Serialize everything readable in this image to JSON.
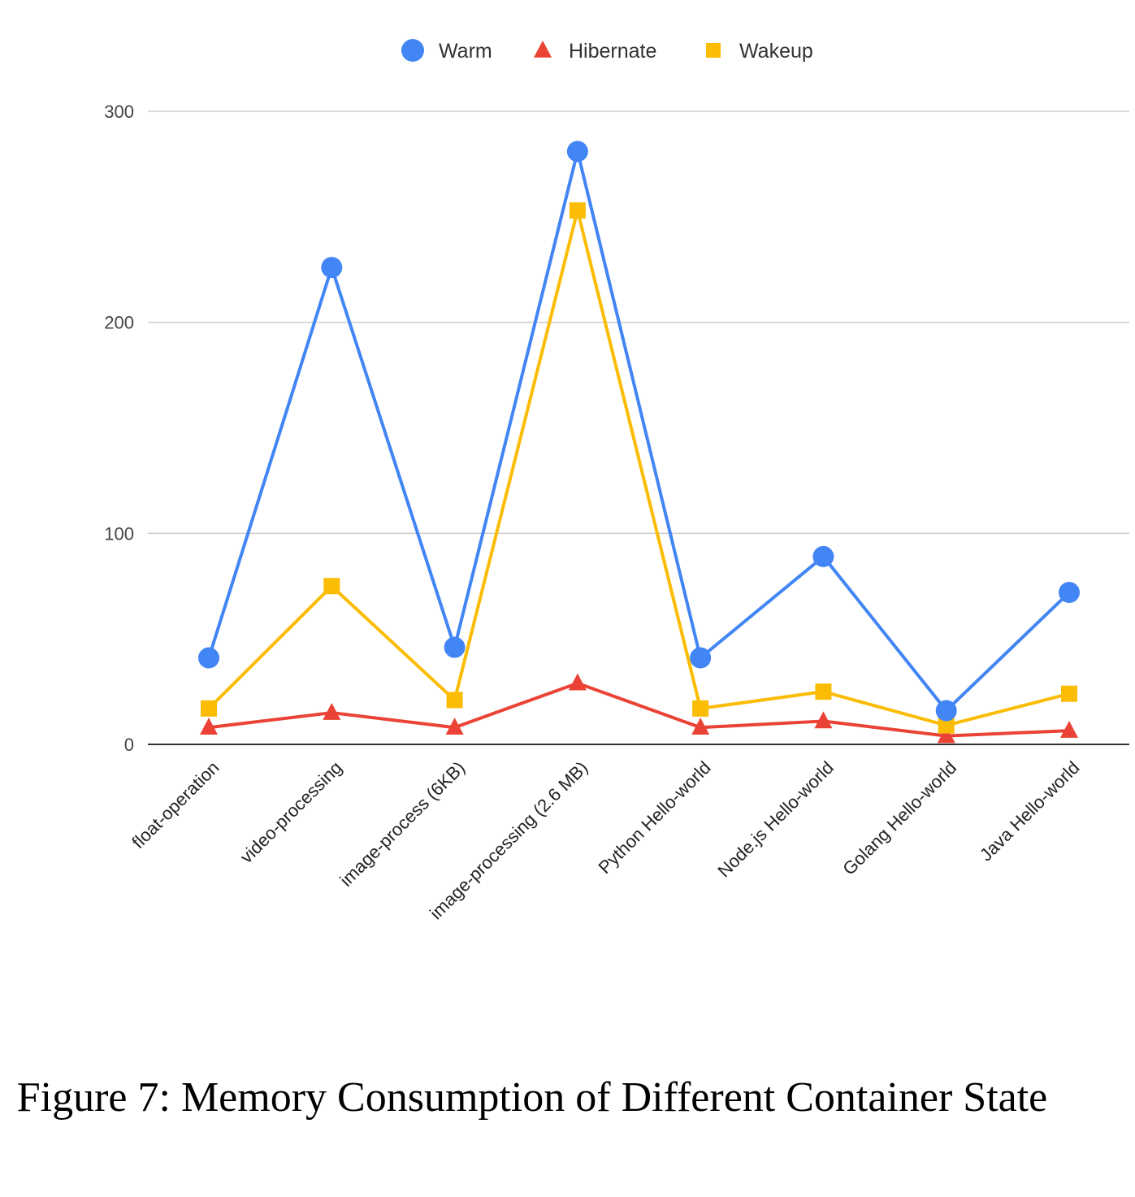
{
  "caption": "Figure 7: Memory Consumption of Different Container State",
  "chart_data": {
    "type": "line",
    "title": "",
    "xlabel": "",
    "ylabel": "",
    "ylim": [
      0,
      300
    ],
    "yticks": [
      0,
      100,
      200,
      300
    ],
    "grid": true,
    "legend_position": "top-center",
    "categories": [
      "float-operation",
      "video-processing",
      "image-process (6KB)",
      "image-processing (2.6 MB)",
      "Python Hello-world",
      "Node.js Hello-world",
      "Golang Hello-world",
      "Java Hello-world"
    ],
    "series": [
      {
        "name": "Warm",
        "marker": "circle",
        "color": "#4285F4",
        "values": [
          41,
          226,
          46,
          281,
          41,
          89,
          16,
          72
        ]
      },
      {
        "name": "Hibernate",
        "marker": "triangle",
        "color": "#EA4335",
        "values": [
          8,
          15,
          8,
          29,
          8,
          11,
          4,
          6.5
        ]
      },
      {
        "name": "Wakeup",
        "marker": "square",
        "color": "#FBBC04",
        "values": [
          17,
          75,
          21,
          253,
          17,
          25,
          9,
          24
        ]
      }
    ]
  }
}
